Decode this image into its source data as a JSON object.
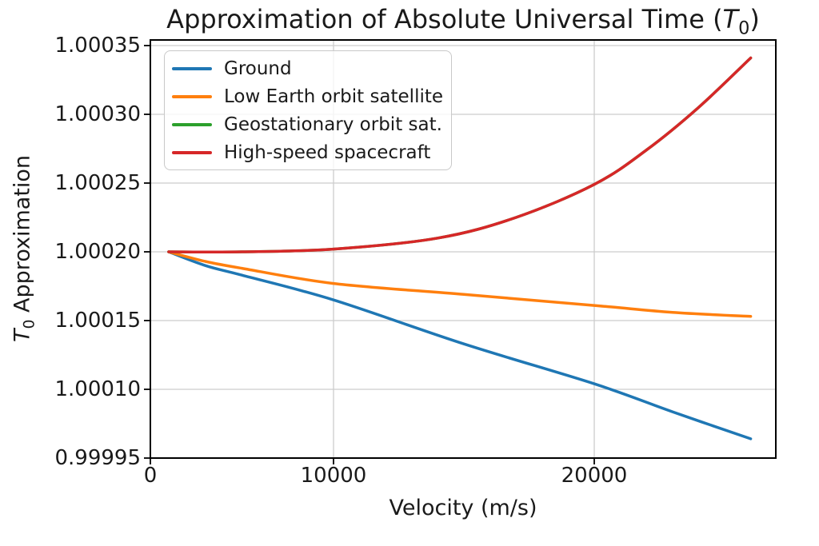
{
  "figure": {
    "title_prefix": "Approximation of Absolute Universal Time (",
    "title_var": "T",
    "title_var_sub": "0",
    "title_suffix": ")",
    "ylabel_var": "T",
    "ylabel_var_sub": "0",
    "ylabel_rest": " Approximation",
    "background_color": "#ffffff",
    "text_color": "#1a1a1a",
    "grid_color": "#cccccc",
    "spine_color": "#000000"
  },
  "chart_data": {
    "type": "line",
    "title": "Approximation of Absolute Universal Time (T₀)",
    "xlabel": "Velocity (m/s)",
    "ylabel": "T₀ Approximation",
    "grid": true,
    "legend_position": "upper left",
    "xlim": [
      0,
      27000
    ],
    "ylim": [
      0.99995,
      1.000355
    ],
    "xticks": [
      0,
      10000,
      20000
    ],
    "xtick_labels": [
      "0",
      "10000",
      "20000"
    ],
    "ytick_values": [
      1.00035,
      1.0003,
      1.00025,
      1.0002,
      1.00015,
      1.0001,
      0.99995
    ],
    "ytick_labels": [
      "1.00035",
      "1.00030",
      "1.00025",
      "1.00020",
      "1.00015",
      "1.00010",
      "0.99995"
    ],
    "series": [
      {
        "name": "Ground",
        "color": "#1f77b4",
        "x": [
          1000,
          3000,
          5000,
          10000,
          15000,
          20000,
          23000,
          26000
        ],
        "y": [
          1.0002,
          1.00019,
          1.000183,
          1.000165,
          1.000133,
          1.000104,
          1.000051,
          0.999992
        ]
      },
      {
        "name": "Low Earth orbit satellite",
        "color": "#ff7f0e",
        "x": [
          1000,
          3000,
          5000,
          10000,
          15000,
          20000,
          23000,
          26000
        ],
        "y": [
          1.0002,
          1.000193,
          1.000188,
          1.000177,
          1.000169,
          1.000161,
          1.000156,
          1.000153
        ]
      },
      {
        "name": "Geostationary orbit sat.",
        "color": "#2ca02c",
        "x": [
          1000,
          5000,
          10000,
          14000,
          17000,
          20000,
          22000,
          24000,
          26000
        ],
        "y": [
          1.0002,
          1.0002,
          1.000202,
          1.00021,
          1.000225,
          1.000249,
          1.000274,
          1.000305,
          1.000341
        ],
        "note": "not visible in plot; coincides with High-speed spacecraft curve"
      },
      {
        "name": "High-speed spacecraft",
        "color": "#d62728",
        "x": [
          1000,
          5000,
          10000,
          14000,
          17000,
          20000,
          22000,
          24000,
          26000
        ],
        "y": [
          1.0002,
          1.0002,
          1.000202,
          1.00021,
          1.000225,
          1.000249,
          1.000274,
          1.000305,
          1.000341
        ]
      }
    ]
  }
}
